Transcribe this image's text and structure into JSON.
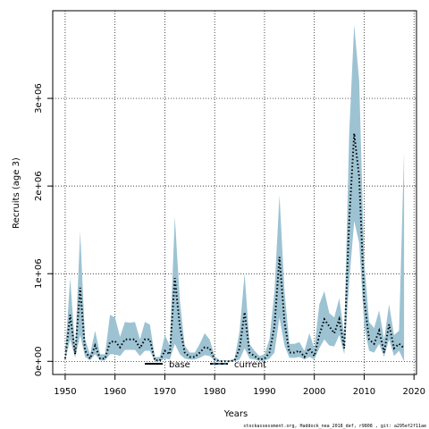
{
  "chart_data": {
    "type": "area",
    "title": "",
    "xlabel": "Years",
    "ylabel": "Recruits (age 3)",
    "xlim": [
      1947.5,
      2020.5
    ],
    "ylim": [
      -150000,
      4000000
    ],
    "x_ticks": [
      1950,
      1960,
      1970,
      1980,
      1990,
      2000,
      2010,
      2020
    ],
    "y_ticks": [
      {
        "value": 0,
        "label": "0e+00"
      },
      {
        "value": 1000000,
        "label": "1e+06"
      },
      {
        "value": 2000000,
        "label": "2e+06"
      },
      {
        "value": 3000000,
        "label": "3e+06"
      }
    ],
    "grid": true,
    "legend_position": "bottom-center",
    "band_color": "#9dc3d3",
    "years": [
      1950,
      1951,
      1952,
      1953,
      1954,
      1955,
      1956,
      1957,
      1958,
      1959,
      1960,
      1961,
      1962,
      1963,
      1964,
      1965,
      1966,
      1967,
      1968,
      1969,
      1970,
      1971,
      1972,
      1973,
      1974,
      1975,
      1976,
      1977,
      1978,
      1979,
      1980,
      1981,
      1982,
      1983,
      1984,
      1985,
      1986,
      1987,
      1988,
      1989,
      1990,
      1991,
      1992,
      1993,
      1994,
      1995,
      1996,
      1997,
      1998,
      1999,
      2000,
      2001,
      2002,
      2003,
      2004,
      2005,
      2006,
      2007,
      2008,
      2009,
      2010,
      2011,
      2012,
      2013,
      2014,
      2015,
      2016,
      2017,
      2018
    ],
    "series": [
      {
        "name": "current",
        "style": "dotted",
        "color": "#000000",
        "values": [
          30000,
          530000,
          80000,
          840000,
          120000,
          30000,
          180000,
          30000,
          30000,
          220000,
          230000,
          160000,
          250000,
          250000,
          250000,
          150000,
          250000,
          250000,
          10000,
          10000,
          120000,
          80000,
          950000,
          400000,
          100000,
          50000,
          50000,
          100000,
          160000,
          150000,
          20000,
          0,
          0,
          0,
          10000,
          150000,
          560000,
          100000,
          60000,
          20000,
          30000,
          100000,
          400000,
          1190000,
          450000,
          100000,
          100000,
          120000,
          50000,
          150000,
          60000,
          300000,
          480000,
          400000,
          320000,
          480000,
          150000,
          1600000,
          2600000,
          2100000,
          700000,
          250000,
          200000,
          350000,
          100000,
          420000,
          150000,
          200000,
          150000
        ]
      },
      {
        "name": "lower",
        "values": [
          10000,
          250000,
          40000,
          300000,
          50000,
          10000,
          80000,
          10000,
          10000,
          80000,
          80000,
          60000,
          130000,
          130000,
          130000,
          60000,
          120000,
          120000,
          0,
          0,
          30000,
          20000,
          200000,
          80000,
          30000,
          20000,
          20000,
          40000,
          70000,
          60000,
          5000,
          0,
          0,
          0,
          0,
          20000,
          150000,
          30000,
          20000,
          5000,
          5000,
          30000,
          100000,
          500000,
          180000,
          40000,
          40000,
          50000,
          20000,
          50000,
          20000,
          150000,
          250000,
          180000,
          170000,
          300000,
          80000,
          900000,
          1600000,
          1350000,
          400000,
          120000,
          100000,
          200000,
          50000,
          250000,
          60000,
          120000,
          0
        ]
      },
      {
        "name": "upper",
        "values": [
          80000,
          950000,
          150000,
          1480000,
          250000,
          80000,
          350000,
          80000,
          80000,
          530000,
          500000,
          280000,
          450000,
          440000,
          450000,
          250000,
          450000,
          420000,
          50000,
          50000,
          300000,
          180000,
          1650000,
          700000,
          180000,
          100000,
          100000,
          200000,
          320000,
          250000,
          60000,
          10000,
          10000,
          10000,
          30000,
          350000,
          1000000,
          200000,
          120000,
          60000,
          80000,
          250000,
          800000,
          1900000,
          800000,
          200000,
          200000,
          220000,
          120000,
          320000,
          150000,
          650000,
          800000,
          550000,
          500000,
          720000,
          300000,
          2600000,
          3840000,
          3200000,
          1150000,
          450000,
          380000,
          580000,
          250000,
          650000,
          300000,
          350000,
          2400000
        ]
      },
      {
        "name": "base",
        "style": "solid",
        "color": "#000000",
        "values": []
      }
    ],
    "legend": [
      {
        "label": "base",
        "style": "solid"
      },
      {
        "label": "current",
        "style": "dashed-blue"
      }
    ]
  },
  "footnote": "stockassessment.org, Haddock_nea_2018_def, r9808 , git: a295ef2f11ae"
}
